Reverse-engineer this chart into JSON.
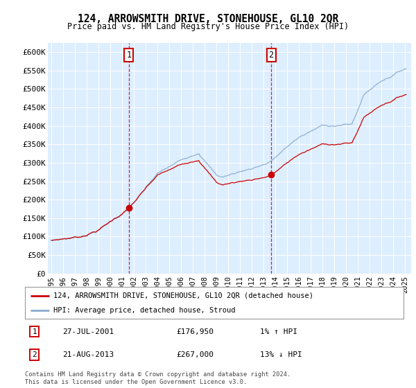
{
  "title": "124, ARROWSMITH DRIVE, STONEHOUSE, GL10 2QR",
  "subtitle": "Price paid vs. HM Land Registry's House Price Index (HPI)",
  "ylabel_ticks": [
    0,
    50000,
    100000,
    150000,
    200000,
    250000,
    300000,
    350000,
    400000,
    450000,
    500000,
    550000,
    600000
  ],
  "ylabel_labels": [
    "£0",
    "£50K",
    "£100K",
    "£150K",
    "£200K",
    "£250K",
    "£300K",
    "£350K",
    "£400K",
    "£450K",
    "£500K",
    "£550K",
    "£600K"
  ],
  "xlim": [
    1994.7,
    2025.5
  ],
  "ylim": [
    0,
    625000
  ],
  "background_color": "#ddeeff",
  "grid_color": "#ffffff",
  "red_color": "#cc0000",
  "blue_color": "#88aacc",
  "marker1_x": 2001.57,
  "marker1_y": 176950,
  "marker2_x": 2013.64,
  "marker2_y": 267000,
  "annotation1_date": "27-JUL-2001",
  "annotation1_price": "£176,950",
  "annotation1_hpi": "1% ↑ HPI",
  "annotation2_date": "21-AUG-2013",
  "annotation2_price": "£267,000",
  "annotation2_hpi": "13% ↓ HPI",
  "legend_line1": "124, ARROWSMITH DRIVE, STONEHOUSE, GL10 2QR (detached house)",
  "legend_line2": "HPI: Average price, detached house, Stroud",
  "footer": "Contains HM Land Registry data © Crown copyright and database right 2024.\nThis data is licensed under the Open Government Licence v3.0.",
  "x_tick_years": [
    1995,
    1996,
    1997,
    1998,
    1999,
    2000,
    2001,
    2002,
    2003,
    2004,
    2005,
    2006,
    2007,
    2008,
    2009,
    2010,
    2011,
    2012,
    2013,
    2014,
    2015,
    2016,
    2017,
    2018,
    2019,
    2020,
    2021,
    2022,
    2023,
    2024,
    2025
  ]
}
